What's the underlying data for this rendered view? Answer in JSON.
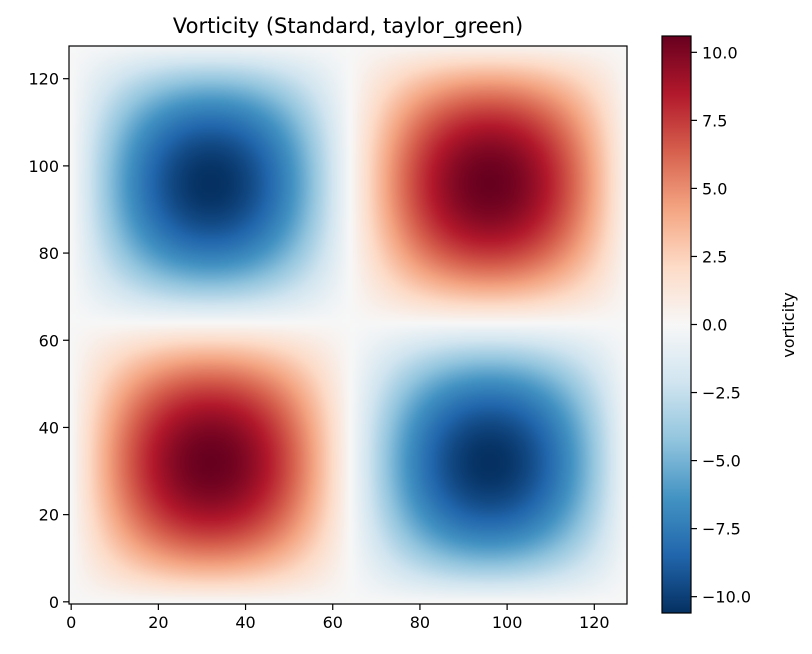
{
  "chart_data": {
    "type": "heatmap",
    "title": "Vorticity (Standard, taylor_green)",
    "xlabel": "",
    "ylabel": "",
    "grid_size": [
      128,
      128
    ],
    "xlim": [
      0,
      127
    ],
    "ylim": [
      0,
      127
    ],
    "x_ticks": [
      0,
      20,
      40,
      60,
      80,
      100,
      120
    ],
    "y_ticks": [
      0,
      20,
      40,
      60,
      80,
      100,
      120
    ],
    "x_tick_labels": [
      "0",
      "20",
      "40",
      "60",
      "80",
      "100",
      "120"
    ],
    "y_tick_labels": [
      "0",
      "20",
      "40",
      "60",
      "80",
      "100",
      "120"
    ],
    "field": "taylor_green",
    "amplitude": 10.6,
    "extrema": [
      {
        "x": 32,
        "y": 32,
        "value": 10.6
      },
      {
        "x": 96,
        "y": 96,
        "value": 10.6
      },
      {
        "x": 96,
        "y": 32,
        "value": -10.6
      },
      {
        "x": 32,
        "y": 96,
        "value": -10.6
      }
    ],
    "colormap": "RdBu_r",
    "grid": false,
    "colorbar": {
      "label": "vorticity",
      "range": [
        -10.6,
        10.6
      ],
      "ticks": [
        10.0,
        7.5,
        5.0,
        2.5,
        0.0,
        -2.5,
        -5.0,
        -7.5,
        -10.0
      ],
      "tick_labels": [
        "10.0",
        "7.5",
        "5.0",
        "2.5",
        "0.0",
        "−2.5",
        "−5.0",
        "−7.5",
        "−10.0"
      ],
      "placement": "right"
    }
  },
  "colors": {
    "neg_extreme": "#053061",
    "pos_extreme": "#67001f",
    "center": "#f7f7f7"
  }
}
